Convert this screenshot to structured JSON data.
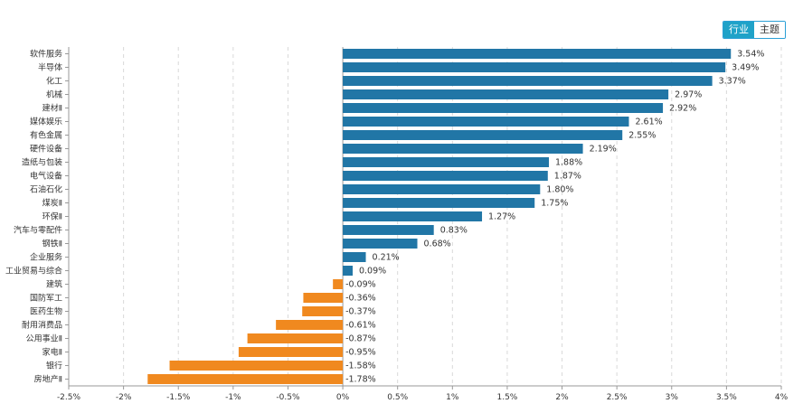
{
  "toggle": {
    "industry_label": "行业",
    "theme_label": "主题"
  },
  "colors": {
    "positive": "#2176a6",
    "negative": "#f0891f",
    "axis": "#999999",
    "grid": "#d9d9d9",
    "text": "#333333"
  },
  "chart_data": {
    "type": "bar",
    "orientation": "horizontal",
    "categories": [
      "软件服务",
      "半导体",
      "化工",
      "机械",
      "建材Ⅱ",
      "媒体娱乐",
      "有色金属",
      "硬件设备",
      "造纸与包装",
      "电气设备",
      "石油石化",
      "煤炭Ⅱ",
      "环保Ⅱ",
      "汽车与零配件",
      "钢铁Ⅱ",
      "企业服务",
      "工业贸易与综合",
      "建筑",
      "国防军工",
      "医药生物",
      "耐用消费品",
      "公用事业Ⅱ",
      "家电Ⅱ",
      "银行",
      "房地产Ⅱ"
    ],
    "values": [
      3.54,
      3.49,
      3.37,
      2.97,
      2.92,
      2.61,
      2.55,
      2.19,
      1.88,
      1.87,
      1.8,
      1.75,
      1.27,
      0.83,
      0.68,
      0.21,
      0.09,
      -0.09,
      -0.36,
      -0.37,
      -0.61,
      -0.87,
      -0.95,
      -1.58,
      -1.78
    ],
    "value_labels": [
      "3.54%",
      "3.49%",
      "3.37%",
      "2.97%",
      "2.92%",
      "2.61%",
      "2.55%",
      "2.19%",
      "1.88%",
      "1.87%",
      "1.80%",
      "1.75%",
      "1.27%",
      "0.83%",
      "0.68%",
      "0.21%",
      "0.09%",
      "-0.09%",
      "-0.36%",
      "-0.37%",
      "-0.61%",
      "-0.87%",
      "-0.95%",
      "-1.58%",
      "-1.78%"
    ],
    "xlim": [
      -2.5,
      4
    ],
    "x_ticks": [
      -2.5,
      -2,
      -1.5,
      -1,
      -0.5,
      0,
      0.5,
      1,
      1.5,
      2,
      2.5,
      3,
      3.5,
      4
    ],
    "x_tick_labels": [
      "-2.5%",
      "-2%",
      "-1.5%",
      "-1%",
      "-0.5%",
      "0%",
      "0.5%",
      "1%",
      "1.5%",
      "2%",
      "2.5%",
      "3%",
      "3.5%",
      "4%"
    ],
    "grid": true,
    "title": "",
    "xlabel": "",
    "ylabel": ""
  }
}
